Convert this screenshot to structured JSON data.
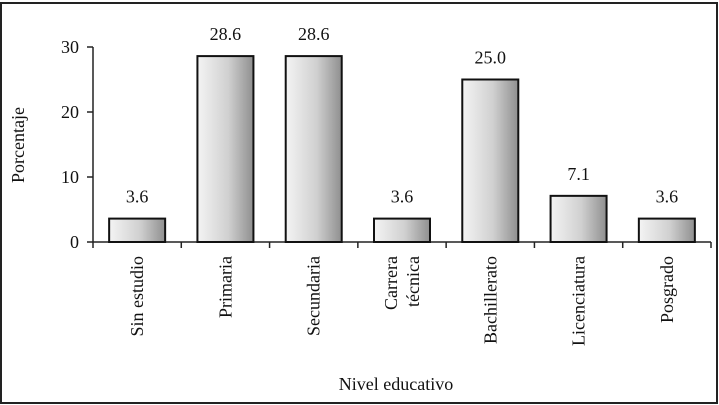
{
  "chart_data": {
    "type": "bar",
    "categories": [
      "Sin estudio",
      "Primaria",
      "Secundaria",
      "Carrera\ntécnica",
      "Bachillerato",
      "Licenciatura",
      "Posgrado"
    ],
    "values": [
      3.6,
      28.6,
      28.6,
      3.6,
      25.0,
      7.1,
      3.6
    ],
    "value_labels": [
      "3.6",
      "28.6",
      "28.6",
      "3.6",
      "25.0",
      "7.1",
      "3.6"
    ],
    "title": "",
    "xlabel": "Nivel educativo",
    "ylabel": "Porcentaje",
    "ylim": [
      0,
      30
    ],
    "yticks": [
      "0",
      "10",
      "20",
      "30"
    ],
    "grid": false,
    "legend": "none",
    "bar_gradient": [
      "#f2f2f2",
      "#9a9a9a"
    ]
  }
}
